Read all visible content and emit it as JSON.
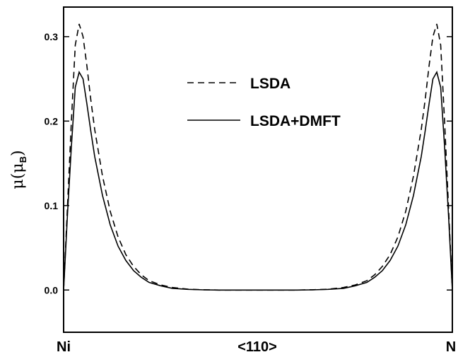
{
  "chart_data": {
    "type": "line",
    "title": "",
    "xlabel": "<110>",
    "x_endpoint_labels": [
      "Ni",
      "N"
    ],
    "ylabel": {
      "main": "μ(μ",
      "sub": "B",
      "close": ")"
    },
    "xlim": [
      0,
      1
    ],
    "ylim": [
      -0.05,
      0.335
    ],
    "yticks": [
      0.0,
      0.1,
      0.2,
      0.3
    ],
    "ytick_labels": [
      "0.0",
      "0.1",
      "0.2",
      "0.3"
    ],
    "grid": false,
    "legend_position": "top-center",
    "series": [
      {
        "name": "LSDA",
        "style": "dashed",
        "color": "#000000",
        "x": [
          0.0,
          0.01,
          0.02,
          0.03,
          0.04,
          0.05,
          0.06,
          0.07,
          0.08,
          0.1,
          0.12,
          0.14,
          0.16,
          0.18,
          0.2,
          0.22,
          0.25,
          0.28,
          0.32,
          0.36,
          0.4,
          0.45,
          0.5,
          0.55,
          0.6,
          0.64,
          0.68,
          0.72,
          0.75,
          0.78,
          0.8,
          0.82,
          0.84,
          0.86,
          0.88,
          0.9,
          0.92,
          0.93,
          0.94,
          0.95,
          0.96,
          0.97,
          0.98,
          0.99,
          1.0
        ],
        "y": [
          0.0,
          0.1,
          0.2,
          0.29,
          0.315,
          0.3,
          0.265,
          0.225,
          0.19,
          0.135,
          0.093,
          0.063,
          0.042,
          0.028,
          0.018,
          0.011,
          0.006,
          0.003,
          0.001,
          0.0003,
          0.0,
          0.0,
          0.0,
          0.0,
          0.0,
          0.0003,
          0.001,
          0.003,
          0.006,
          0.011,
          0.018,
          0.028,
          0.042,
          0.063,
          0.093,
          0.135,
          0.19,
          0.225,
          0.265,
          0.3,
          0.315,
          0.29,
          0.2,
          0.1,
          0.0
        ]
      },
      {
        "name": "LSDA+DMFT",
        "style": "solid",
        "color": "#000000",
        "x": [
          0.0,
          0.01,
          0.02,
          0.03,
          0.04,
          0.05,
          0.06,
          0.07,
          0.08,
          0.1,
          0.12,
          0.14,
          0.16,
          0.18,
          0.2,
          0.22,
          0.25,
          0.28,
          0.32,
          0.36,
          0.4,
          0.45,
          0.5,
          0.55,
          0.6,
          0.64,
          0.68,
          0.72,
          0.75,
          0.78,
          0.8,
          0.82,
          0.84,
          0.86,
          0.88,
          0.9,
          0.92,
          0.93,
          0.94,
          0.95,
          0.96,
          0.97,
          0.98,
          0.99,
          1.0
        ],
        "y": [
          0.0,
          0.09,
          0.17,
          0.24,
          0.258,
          0.25,
          0.22,
          0.188,
          0.158,
          0.112,
          0.077,
          0.052,
          0.035,
          0.023,
          0.015,
          0.009,
          0.005,
          0.002,
          0.0008,
          0.0002,
          0.0,
          0.0,
          0.0,
          0.0,
          0.0,
          0.0002,
          0.0008,
          0.002,
          0.005,
          0.009,
          0.015,
          0.023,
          0.035,
          0.052,
          0.077,
          0.112,
          0.158,
          0.188,
          0.22,
          0.25,
          0.258,
          0.24,
          0.17,
          0.09,
          0.0
        ]
      }
    ]
  }
}
